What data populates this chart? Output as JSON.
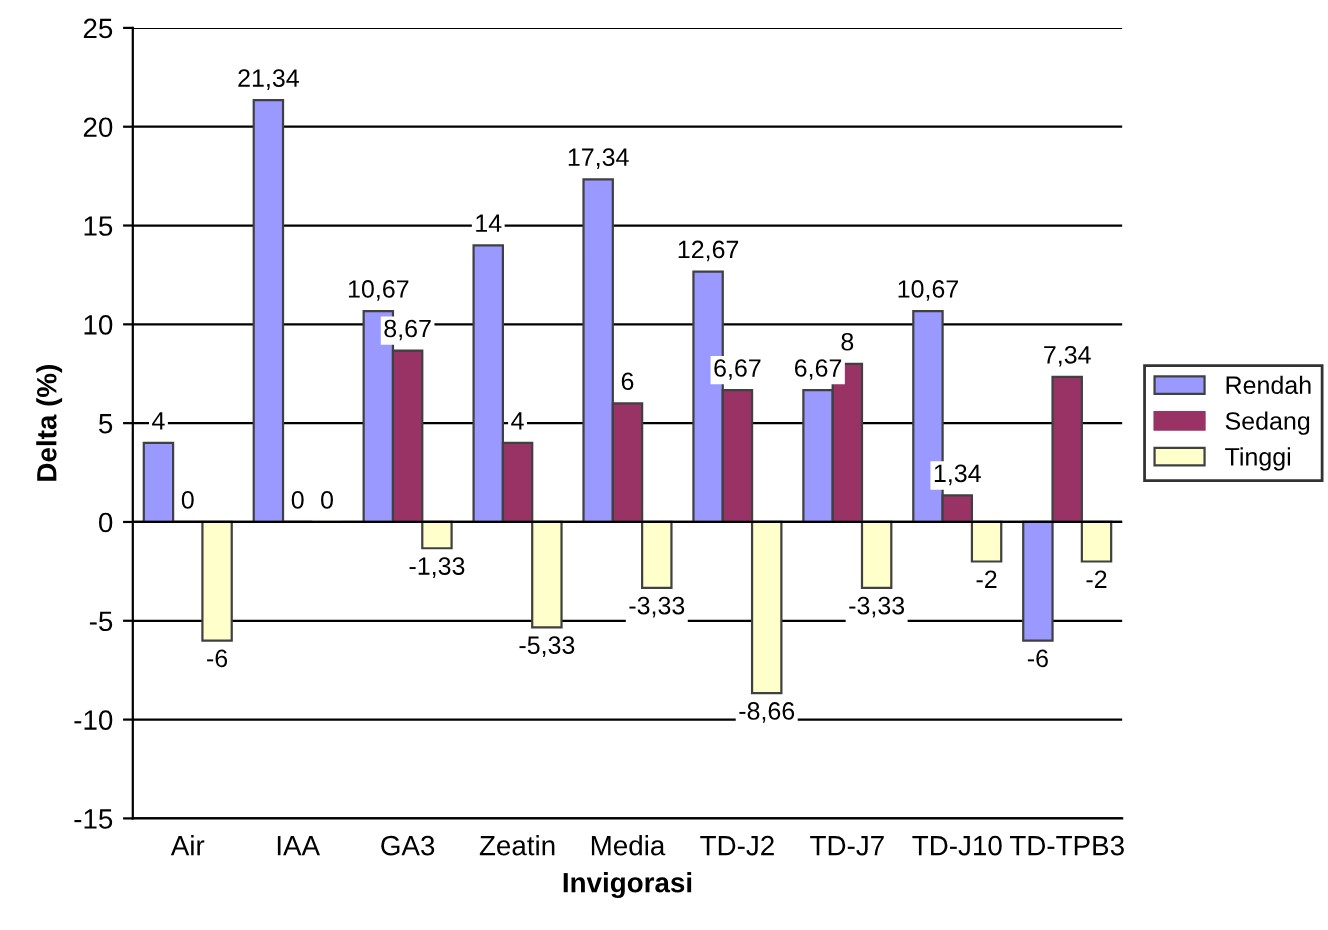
{
  "chart_data": {
    "type": "bar",
    "xlabel": "Invigorasi",
    "ylabel": "Delta (%)",
    "categories": [
      "Air",
      "IAA",
      "GA3",
      "Zeatin",
      "Media",
      "TD-J2",
      "TD-J7",
      "TD-J10",
      "TD-TPB3"
    ],
    "series": [
      {
        "name": "Rendah",
        "color": "#9999ff",
        "values": [
          4,
          21.34,
          10.67,
          14,
          17.34,
          12.67,
          6.67,
          10.67,
          -6
        ],
        "value_labels": [
          "4",
          "21,34",
          "10,67",
          "14",
          "17,34",
          "12,67",
          "6,67",
          "10,67",
          "-6"
        ]
      },
      {
        "name": "Sedang",
        "color": "#993366",
        "values": [
          0,
          0,
          8.67,
          4,
          6,
          6.67,
          8,
          1.34,
          7.34
        ],
        "value_labels": [
          "0",
          "0",
          "8,67",
          "4",
          "6",
          "6,67",
          "8",
          "1,34",
          "7,34"
        ]
      },
      {
        "name": "Tinggi",
        "color": "#ffffcc",
        "values": [
          -6,
          0,
          -1.33,
          -5.33,
          -3.33,
          -8.66,
          -3.33,
          -2,
          -2
        ],
        "value_labels": [
          "-6",
          "0",
          "-1,33",
          "-5,33",
          "-3,33",
          "-8,66",
          "-3,33",
          "-2",
          "-2"
        ]
      }
    ],
    "ylim": [
      -15,
      25
    ],
    "yticks": [
      -15,
      -10,
      -5,
      0,
      5,
      10,
      15,
      20,
      25
    ],
    "grid": "y",
    "legend": "right"
  }
}
